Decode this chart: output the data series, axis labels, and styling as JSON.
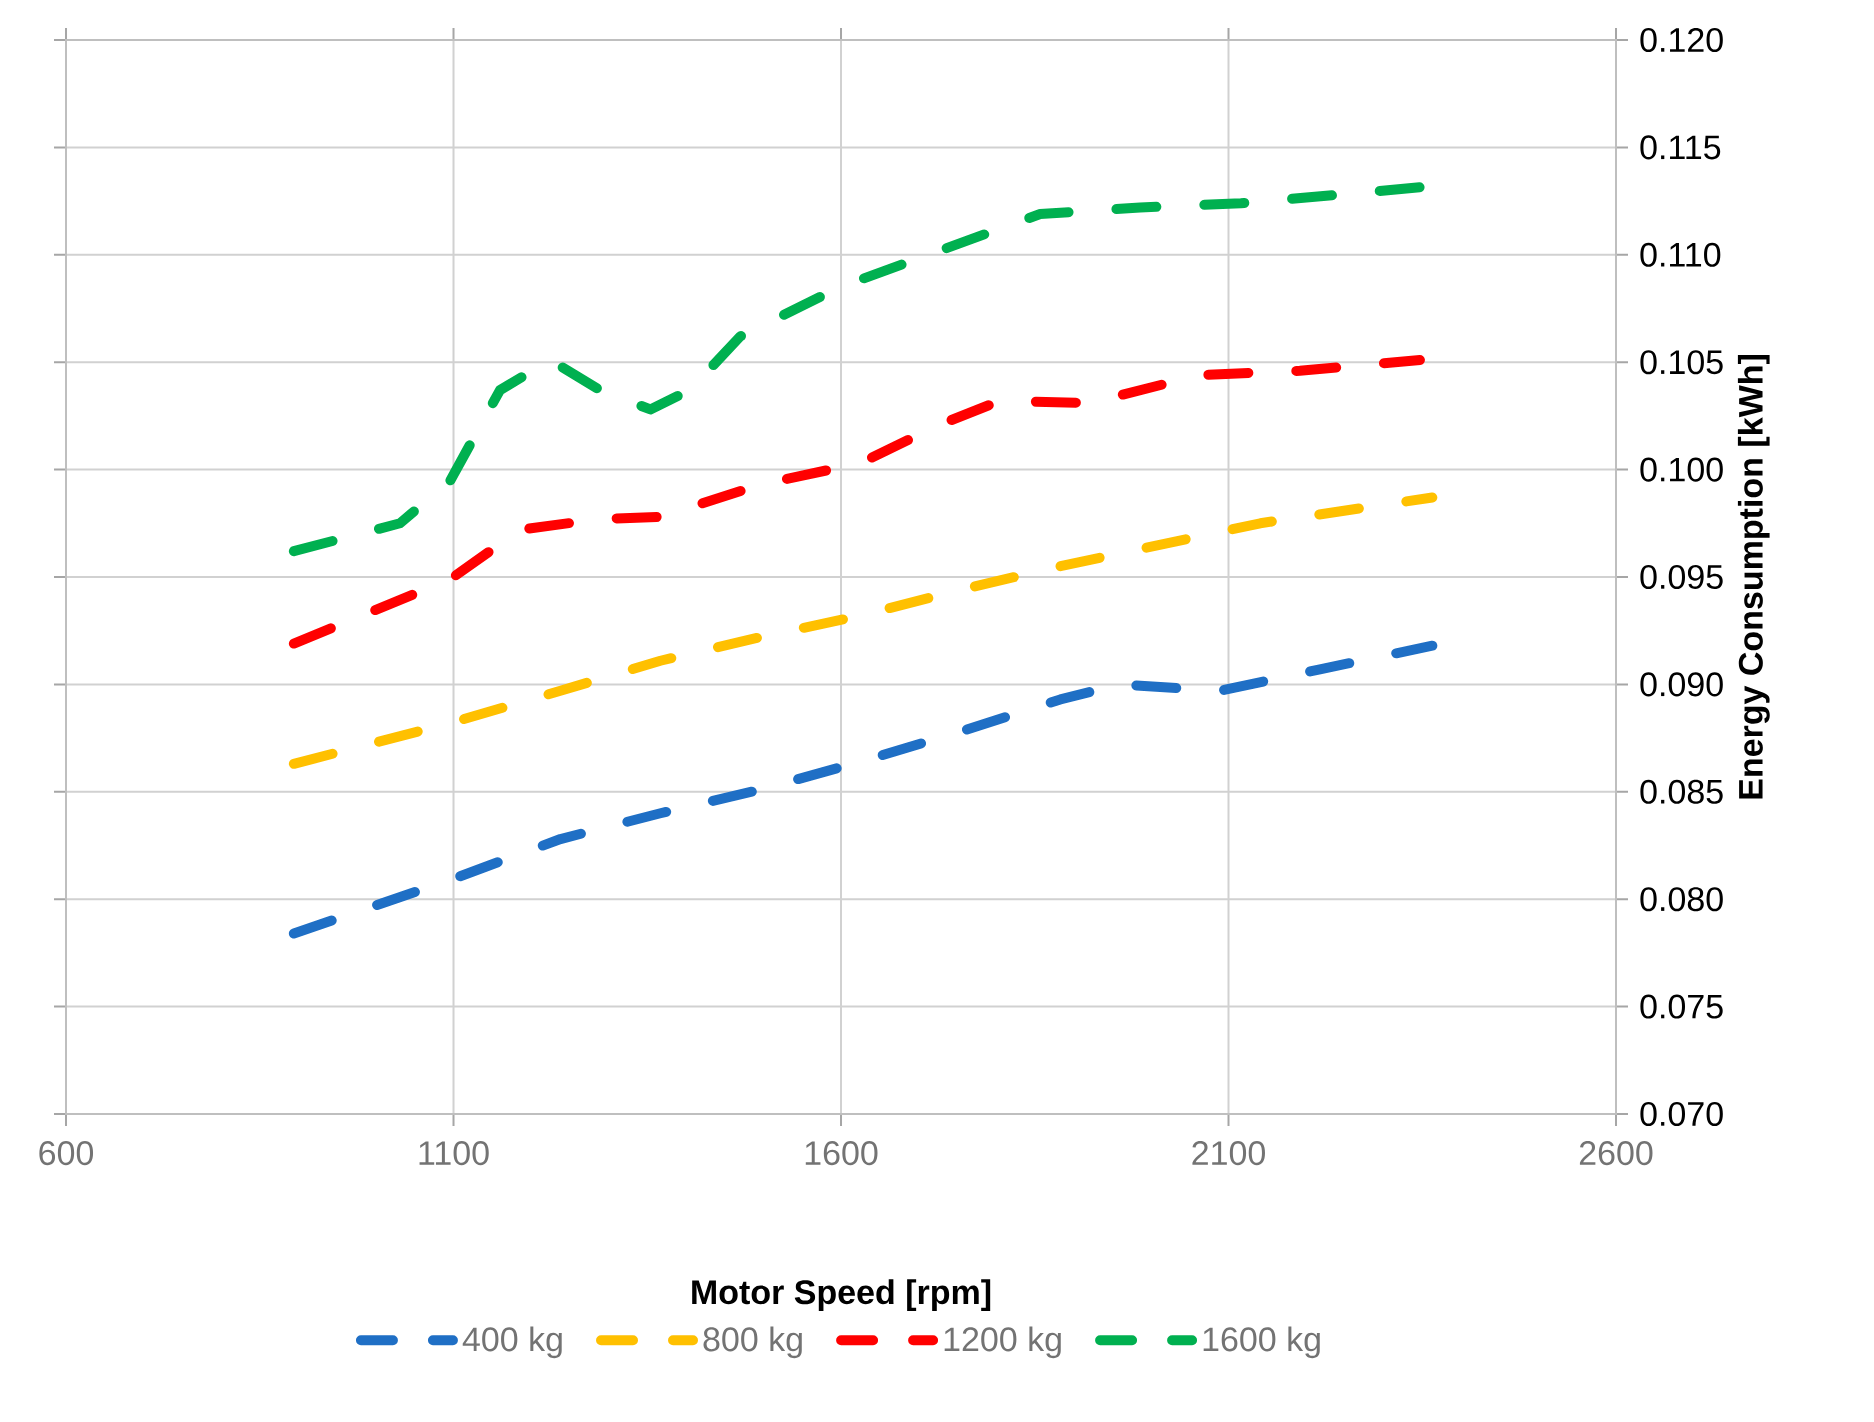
{
  "chart_data": {
    "type": "line",
    "xlabel": "Motor Speed [rpm]",
    "ylabel": "Energy Consumption [kWh]",
    "xlim": [
      600,
      2600
    ],
    "xticks": [
      600,
      1100,
      1600,
      2100,
      2600
    ],
    "ylim": [
      0.07,
      0.12
    ],
    "yticks": [
      {
        "value": 0.07,
        "label": "0.070"
      },
      {
        "value": 0.075,
        "label": "0.075"
      },
      {
        "value": 0.08,
        "label": "0.080"
      },
      {
        "value": 0.085,
        "label": "0.085"
      },
      {
        "value": 0.09,
        "label": "0.090"
      },
      {
        "value": 0.095,
        "label": "0.095"
      },
      {
        "value": 0.1,
        "label": "0.100"
      },
      {
        "value": 0.105,
        "label": "0.105"
      },
      {
        "value": 0.11,
        "label": "0.110"
      },
      {
        "value": 0.115,
        "label": "0.115"
      },
      {
        "value": 0.12,
        "label": "0.120"
      }
    ],
    "grid": true,
    "legend": "bottom",
    "line_style": "dashed",
    "marker": "none",
    "series": [
      {
        "name": "400 kg",
        "color": "#1f6fc5",
        "x": [
          894,
          1096,
          1238,
          1367,
          1496,
          1625,
          1754,
          1883,
          1960,
          2089,
          2218,
          2363
        ],
        "values": [
          0.0784,
          0.0809,
          0.0828,
          0.084,
          0.0851,
          0.0864,
          0.0878,
          0.0893,
          0.09,
          0.0897,
          0.0907,
          0.0918
        ]
      },
      {
        "name": "800 kg",
        "color": "#ffc000",
        "x": [
          894,
          1096,
          1238,
          1367,
          1496,
          1625,
          1754,
          1883,
          2012,
          2141,
          2363
        ],
        "values": [
          0.0863,
          0.0882,
          0.0897,
          0.0911,
          0.0922,
          0.0932,
          0.0944,
          0.0955,
          0.0965,
          0.0975,
          0.0987
        ]
      },
      {
        "name": "1200 kg",
        "color": "#ff0000",
        "x": [
          894,
          1096,
          1186,
          1289,
          1367,
          1496,
          1625,
          1728,
          1805,
          1921,
          2063,
          2192,
          2347
        ],
        "values": [
          0.0919,
          0.0949,
          0.0972,
          0.0977,
          0.0978,
          0.0993,
          0.1003,
          0.1021,
          0.1032,
          0.1031,
          0.1044,
          0.1046,
          0.1051
        ]
      },
      {
        "name": "1600 kg",
        "color": "#00b050",
        "x": [
          894,
          1031,
          1096,
          1160,
          1225,
          1289,
          1354,
          1405,
          1470,
          1599,
          1728,
          1857,
          1986,
          2116,
          2244,
          2363
        ],
        "values": [
          0.0962,
          0.0975,
          0.0995,
          0.1037,
          0.1051,
          0.1037,
          0.1028,
          0.1037,
          0.1062,
          0.1085,
          0.1102,
          0.1119,
          0.1122,
          0.1124,
          0.1128,
          0.1132
        ]
      }
    ]
  }
}
